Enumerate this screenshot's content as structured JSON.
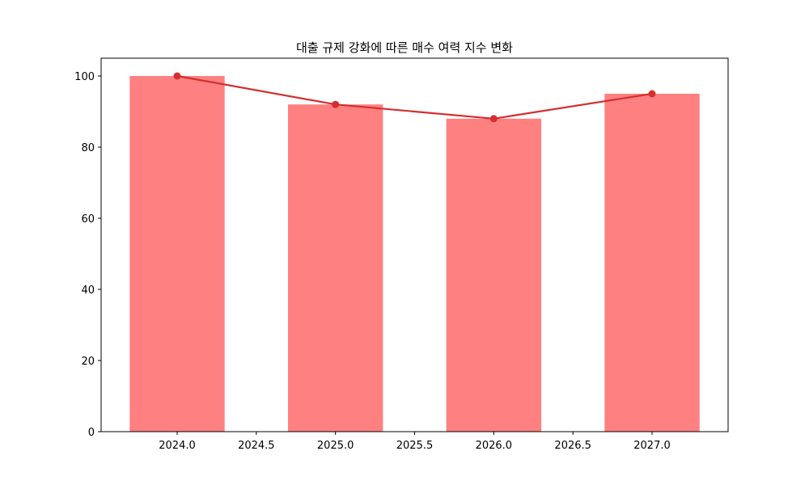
{
  "chart_data": {
    "type": "bar",
    "title": "대출 규제 강화에 따른 매수 여력 지수 변화",
    "xlabel": "",
    "ylabel": "",
    "x": [
      2024,
      2025,
      2026,
      2027
    ],
    "series": [
      {
        "name": "bar",
        "type": "bar",
        "values": [
          100,
          92,
          88,
          95
        ],
        "color": "#ff8080"
      },
      {
        "name": "line",
        "type": "line",
        "values": [
          100,
          92,
          88,
          95
        ],
        "color": "#d32f2f",
        "marker": "o"
      }
    ],
    "xlim": [
      2023.63,
      2027.37
    ],
    "ylim": [
      0,
      105
    ],
    "xticks": [
      "2024.0",
      "2024.5",
      "2025.0",
      "2025.5",
      "2026.0",
      "2026.5",
      "2027.0"
    ],
    "yticks": [
      "0",
      "20",
      "40",
      "60",
      "80",
      "100"
    ],
    "grid": false,
    "legend": null
  }
}
